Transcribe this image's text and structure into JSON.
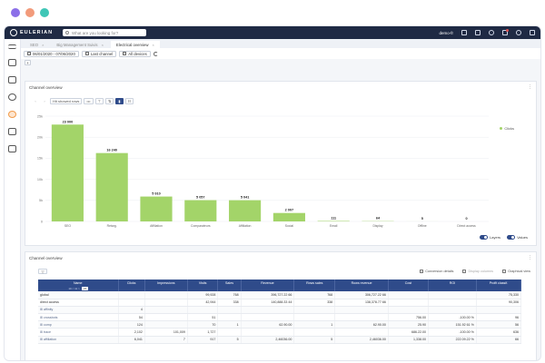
{
  "window_dots": [
    "#8b6fe8",
    "#f29b7b",
    "#3fc6b6"
  ],
  "brand": "EULERIAN",
  "search": {
    "placeholder": "What are you looking for?"
  },
  "user": "demo-fr",
  "tabs": [
    {
      "label": "SEO"
    },
    {
      "label": "Big Management Suivis"
    },
    {
      "label": "Electrical overview"
    }
  ],
  "toolbar": {
    "date_range": "06/01/2020 - 07/06/2020",
    "last_channel": "Last channel",
    "all_devices": "All devices"
  },
  "chart_panel": {
    "title": "Channel overview",
    "controls": {
      "prev": "‹",
      "next": "›",
      "show_label": "Hit showed rows",
      "more": "•••",
      "filter": "⊤",
      "sort": "⇅"
    },
    "toggles": {
      "left": "Layers",
      "right": "Values"
    }
  },
  "chart_data": {
    "type": "bar",
    "title": "",
    "categories": [
      "SEO",
      "Retarg.",
      "Affiliation",
      "Comparateurs",
      "Affiliation2",
      "Social",
      "Email",
      "Display",
      "Offline",
      "Direct access"
    ],
    "category_labels": [
      "SEO",
      "Retarg.",
      "Affiliation",
      "Comparateurs",
      "Affiliation",
      "Social",
      "Email",
      "Display",
      "Offline",
      "Direct access"
    ],
    "series": [
      {
        "name": "Clicks",
        "values": [
          23000,
          16240,
          5910,
          5057,
          5041,
          2007,
          111,
          64,
          5,
          0
        ]
      }
    ],
    "value_labels": [
      "23 000",
      "16 240",
      "5 910",
      "5 057",
      "5 041",
      "2 007",
      "111",
      "64",
      "5",
      "0"
    ],
    "y_ticks": [
      0,
      5000,
      10000,
      15000,
      20000,
      25000
    ],
    "y_tick_labels": [
      "0",
      "5k",
      "10k",
      "15k",
      "20k",
      "25k"
    ],
    "ylim": [
      0,
      25000
    ],
    "color": "#a3d469",
    "legend": "top-right",
    "grid": true
  },
  "table_panel": {
    "title": "Channel overview",
    "links": {
      "conversion": "Conversion details",
      "display_columns": "Display columns",
      "graphical_view": "Graphical view"
    },
    "pager": {
      "left": "10 < 11 >",
      "page": "24"
    },
    "columns": [
      "Name",
      "Clicks",
      "Impressions",
      "Visits",
      "Sales",
      "Revenue",
      "Rows sales",
      "Rows revenue",
      "Cost",
      "ROI",
      "Profit classif."
    ],
    "rows": [
      [
        "global",
        "",
        "",
        "99,928",
        "768",
        "396,727.22 66",
        "768",
        "306,727.22 66",
        "",
        "",
        "75,330"
      ],
      [
        "direct access",
        "",
        "",
        "42,944",
        "338",
        "140,888.33 44",
        "338",
        "138,378.77 66",
        "",
        "",
        "90,306"
      ],
      [
        "affinity",
        "4",
        "",
        "",
        "",
        "",
        "",
        "",
        "",
        "",
        ""
      ],
      [
        "crossbots",
        "54",
        "",
        "51",
        "",
        "",
        "",
        "",
        "756.00",
        "-100.00 %",
        "96"
      ],
      [
        "comp",
        "124",
        "",
        "70",
        "1",
        "62.90.00",
        "1",
        "62.90.00",
        "25.90",
        "151.92 61 %",
        "56"
      ],
      [
        "trace",
        "2,102",
        "101,009",
        "1,727",
        "",
        "",
        "",
        "",
        "686.22.00",
        "-100.00 %",
        "636"
      ],
      [
        "affiliation",
        "6,041",
        "7",
        "917",
        "5",
        "2,46036.00",
        "5",
        "2,46036.00",
        "1,338.00",
        "222.09.22 %",
        "66"
      ]
    ]
  }
}
